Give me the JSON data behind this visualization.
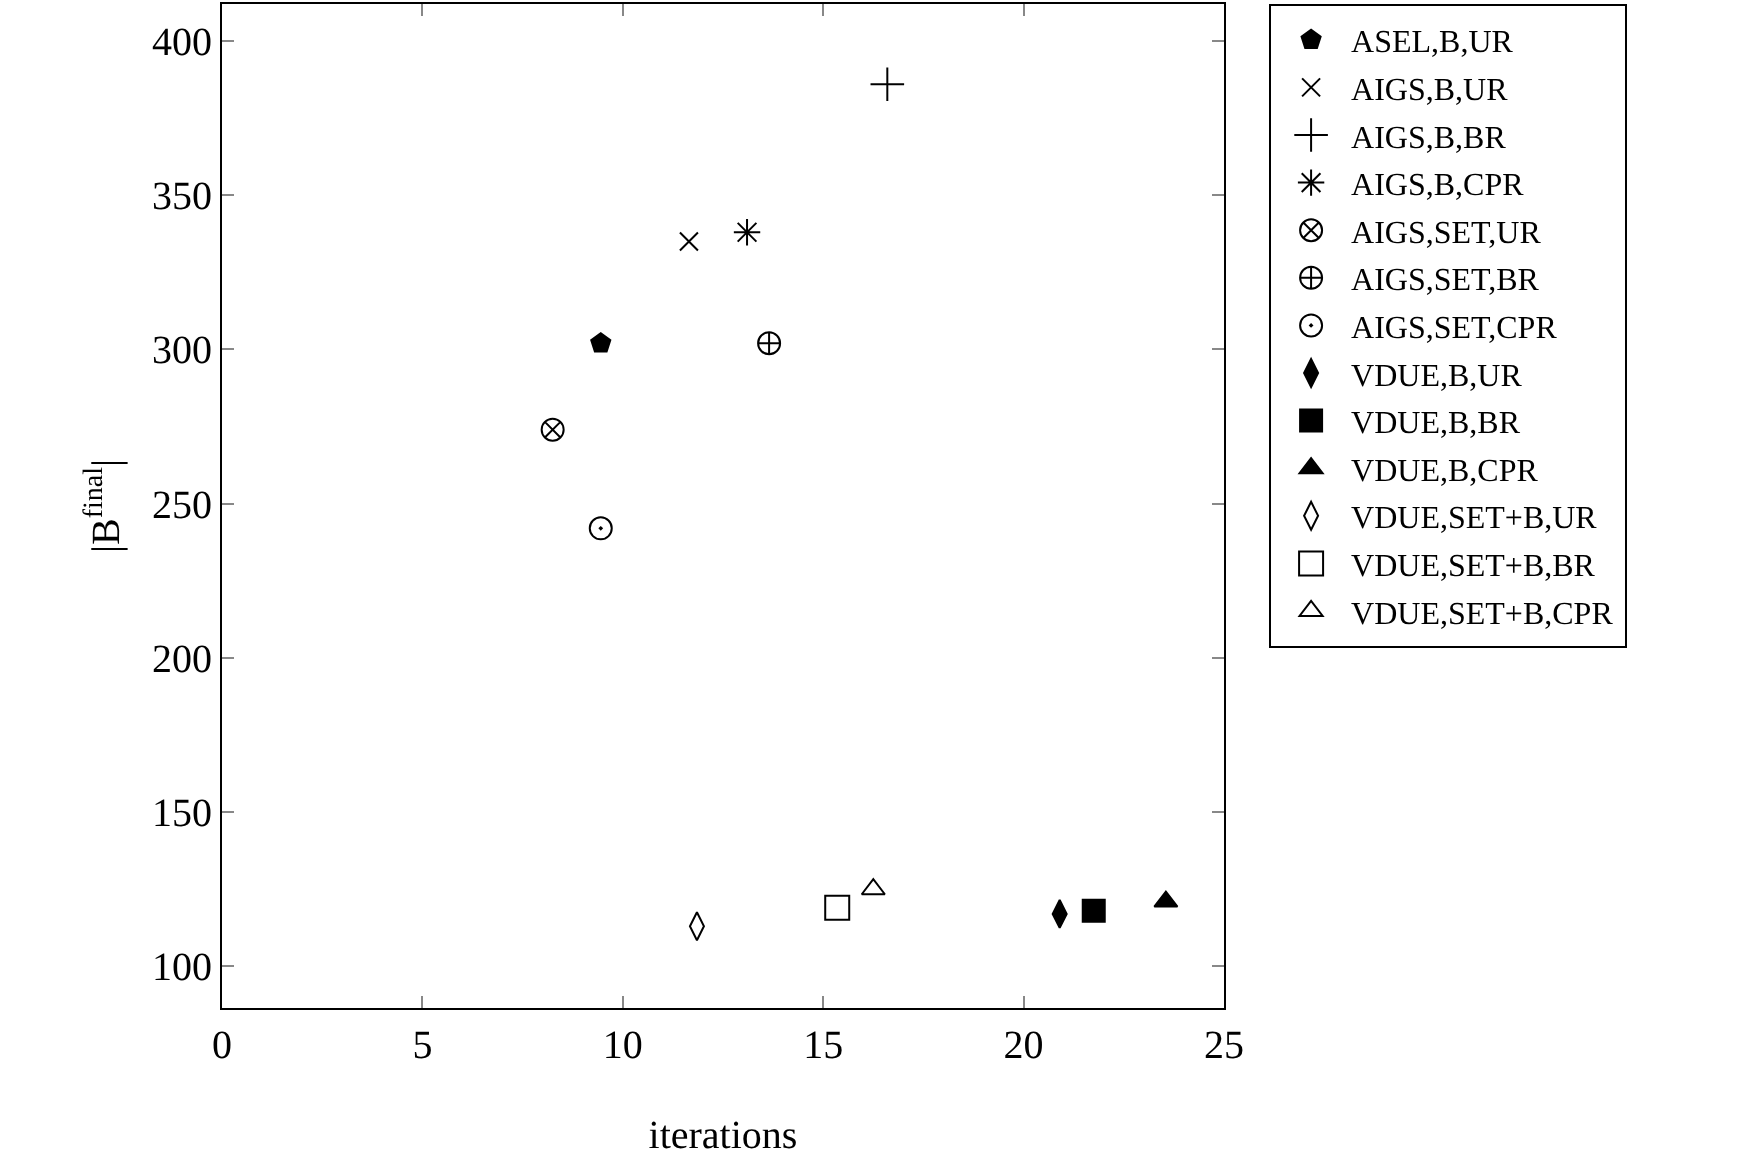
{
  "chart_data": {
    "type": "scatter",
    "xlabel": "iterations",
    "ylabel": "|B$^{final}$|",
    "xlim": [
      0,
      25
    ],
    "ylim": [
      86.5,
      412
    ],
    "xticks": [
      0,
      5,
      10,
      15,
      20,
      25
    ],
    "yticks": [
      100,
      150,
      200,
      250,
      300,
      350,
      400
    ],
    "grid": false,
    "legend": "right",
    "series": [
      {
        "name": "ASEL,B,UR",
        "color": "#000000",
        "x": [
          9.45
        ],
        "values": [
          302
        ]
      },
      {
        "name": "AIGS,B,UR",
        "color": "#000000",
        "x": [
          11.65
        ],
        "values": [
          335
        ]
      },
      {
        "name": "AIGS,B,BR",
        "color": "#000000",
        "x": [
          16.6
        ],
        "values": [
          386
        ]
      },
      {
        "name": "AIGS,B,CPR",
        "color": "#000000",
        "x": [
          13.1
        ],
        "values": [
          338
        ]
      },
      {
        "name": "AIGS,SET,UR",
        "color": "#000000",
        "x": [
          8.25
        ],
        "values": [
          274
        ]
      },
      {
        "name": "AIGS,SET,BR",
        "color": "#000000",
        "x": [
          13.65
        ],
        "values": [
          302
        ]
      },
      {
        "name": "AIGS,SET,CPR",
        "color": "#000000",
        "x": [
          9.45
        ],
        "values": [
          242
        ]
      },
      {
        "name": "VDUE,B,UR",
        "color": "#000000",
        "x": [
          20.9
        ],
        "values": [
          117
        ]
      },
      {
        "name": "VDUE,B,BR",
        "color": "#000000",
        "x": [
          21.75
        ],
        "values": [
          118
        ]
      },
      {
        "name": "VDUE,B,CPR",
        "color": "#000000",
        "x": [
          23.55
        ],
        "values": [
          121
        ]
      },
      {
        "name": "VDUE,SET+B,UR",
        "color": "#000000",
        "x": [
          11.85
        ],
        "values": [
          113
        ]
      },
      {
        "name": "VDUE,SET+B,BR",
        "color": "#000000",
        "x": [
          15.35
        ],
        "values": [
          119
        ]
      },
      {
        "name": "VDUE,SET+B,CPR",
        "color": "#000000",
        "x": [
          16.25
        ],
        "values": [
          125
        ]
      }
    ]
  }
}
